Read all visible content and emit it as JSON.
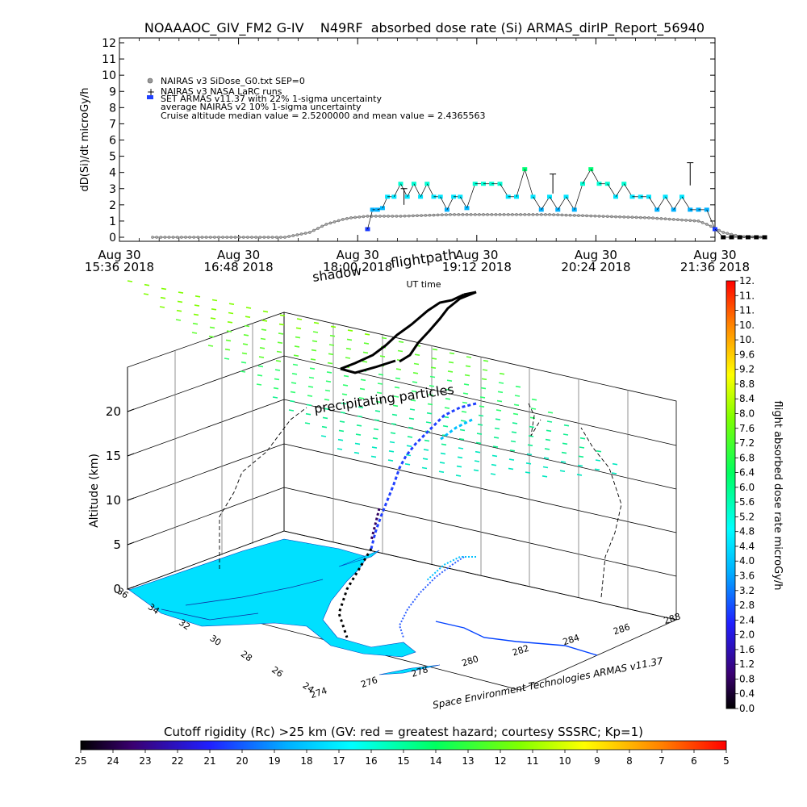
{
  "header": {
    "title": "NOAAAOC_GIV_FM2 G-IV    N49RF  absorbed dose rate (Si) ARMAS_dirIP_Report_56940"
  },
  "chart_data": [
    {
      "type": "scatter",
      "ylabel": "dD(Si)/dt microGy/h",
      "xlabel": "UT time",
      "ylim": [
        0,
        12
      ],
      "y_ticks": [
        "0",
        "1",
        "2",
        "3",
        "4",
        "5",
        "6",
        "7",
        "8",
        "9",
        "10",
        "11",
        "12"
      ],
      "x_ticks": [
        {
          "date": "Aug 30",
          "time": "15:36 2018"
        },
        {
          "date": "Aug 30",
          "time": "16:48 2018"
        },
        {
          "date": "Aug 30",
          "time": "18:00 2018"
        },
        {
          "date": "Aug 30",
          "time": "19:12 2018"
        },
        {
          "date": "Aug 30",
          "time": "20:24 2018"
        },
        {
          "date": "Aug 30",
          "time": "21:36 2018"
        }
      ],
      "legend": [
        "NAIRAS v3 SiDose_G0.txt SEP=0",
        "NAIRAS v3 NASA LaRC runs",
        "SET ARMAS v11.37 with 22% 1-sigma uncertainty",
        "average NAIRAS v2 10% 1-sigma uncertainty",
        "Cruise altitude median value = 2.5200000 and mean value = 2.4365563"
      ],
      "series": [
        {
          "name": "SET ARMAS v11.37 with 22% 1-sigma uncertainty",
          "unit_x": "minutes after 15:36 UT",
          "x": [
            150,
            153,
            156,
            159,
            162,
            166,
            170,
            174,
            178,
            182,
            186,
            190,
            194,
            198,
            202,
            206,
            210,
            215,
            220,
            225,
            230,
            235,
            240,
            245,
            250,
            255,
            260,
            265,
            270,
            275,
            280,
            285,
            290,
            295,
            300,
            305,
            310,
            315,
            320,
            325,
            330,
            335,
            340,
            345,
            350,
            355,
            360,
            365,
            370,
            375,
            380,
            385,
            390
          ],
          "y": [
            0.5,
            1.7,
            1.7,
            1.8,
            2.5,
            2.5,
            3.3,
            2.5,
            3.3,
            2.5,
            3.3,
            2.5,
            2.5,
            1.7,
            2.5,
            2.5,
            1.8,
            3.3,
            3.3,
            3.3,
            3.3,
            2.5,
            2.5,
            4.2,
            2.5,
            1.7,
            2.5,
            1.7,
            2.5,
            1.7,
            3.3,
            4.2,
            3.3,
            3.3,
            2.5,
            3.3,
            2.5,
            2.5,
            2.5,
            1.7,
            2.5,
            1.7,
            2.5,
            1.7,
            1.7,
            1.7,
            0.5,
            0.0,
            0.0,
            0.0,
            0.0,
            0.0,
            0.0
          ]
        },
        {
          "name": "average NAIRAS v2 10% 1-sigma uncertainty",
          "unit_x": "minutes after 15:36 UT",
          "x": [
            20,
            60,
            100,
            115,
            125,
            135,
            140,
            150,
            170,
            200,
            230,
            260,
            290,
            320,
            350,
            355,
            365,
            375,
            390
          ],
          "y": [
            0,
            0,
            0,
            0.3,
            0.8,
            1.1,
            1.2,
            1.3,
            1.3,
            1.4,
            1.4,
            1.4,
            1.3,
            1.2,
            1.0,
            0.8,
            0.3,
            0.05,
            0
          ]
        }
      ]
    },
    {
      "type": "scatter",
      "title": "flightpath",
      "ylabel": "Altitude (km)",
      "z_ticks": [
        "0",
        "5",
        "10",
        "15",
        "20"
      ],
      "lat_ticks": [
        "36",
        "34",
        "32",
        "30",
        "28",
        "26",
        "24"
      ],
      "lon_ticks": [
        "274",
        "276",
        "278",
        "280",
        "282",
        "284",
        "286",
        "288"
      ],
      "labels": [
        "shadow",
        "precipitating particles",
        "Space Environment Technologies ARMAS v11.37"
      ],
      "colorbar_label": "flight absorbed dose rate microGy/h",
      "colorbar_ticks": [
        "0.0",
        "0.4",
        "0.8",
        "1.2",
        "1.6",
        "2.0",
        "2.4",
        "2.8",
        "3.2",
        "3.6",
        "4.0",
        "4.4",
        "4.8",
        "5.2",
        "5.6",
        "6.0",
        "6.4",
        "6.8",
        "7.2",
        "7.6",
        "8.0",
        "8.4",
        "8.8",
        "9.2",
        "9.6",
        "10.",
        "10.",
        "11.",
        "11.",
        "12."
      ],
      "colorbar_range": [
        0,
        12
      ]
    },
    {
      "type": "heatmap",
      "title": "Cutoff rigidity (Rc) >25 km (GV: red = greatest hazard; courtesy SSSRC; Kp=1)",
      "ticks": [
        "25",
        "24",
        "23",
        "22",
        "21",
        "20",
        "19",
        "18",
        "17",
        "16",
        "15",
        "14",
        "13",
        "12",
        "11",
        "10",
        "9",
        "8",
        "7",
        "6",
        "5"
      ],
      "range": [
        25,
        5
      ]
    }
  ]
}
